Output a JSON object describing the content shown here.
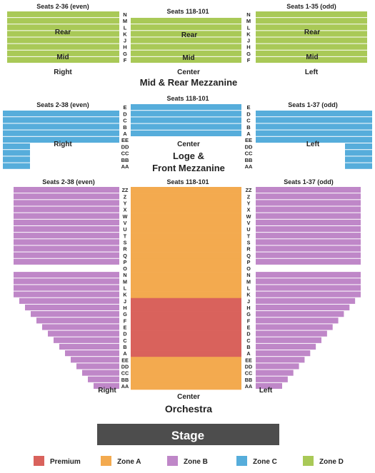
{
  "zones": {
    "premium": {
      "label": "Premium",
      "color": "#d9625c"
    },
    "zone_a": {
      "label": "Zone A",
      "color": "#f3aa4f"
    },
    "zone_b": {
      "label": "Zone B",
      "color": "#bf87c8"
    },
    "zone_c": {
      "label": "Zone C",
      "color": "#56addb"
    },
    "zone_d": {
      "label": "Zone D",
      "color": "#a9c957"
    }
  },
  "mezz": {
    "title": "Mid & Rear Mezzanine",
    "seats_left": "Seats 2-36 (even)",
    "seats_center": "Seats 118-101",
    "seats_right": "Seats 1-35 (odd)",
    "rear_label": "Rear",
    "mid_label": "Mid",
    "side_left": "Right",
    "side_center": "Center",
    "side_right": "Left",
    "rows": [
      "N",
      "M",
      "L",
      "K",
      "J",
      "H",
      "G",
      "F"
    ]
  },
  "loge": {
    "title_line1": "Loge &",
    "title_line2": "Front Mezzanine",
    "seats_left": "Seats 2-38 (even)",
    "seats_center": "Seats 118-101",
    "seats_right": "Seats 1-37 (odd)",
    "side_left": "Right",
    "side_center": "Center",
    "side_right": "Left",
    "rows": [
      "E",
      "D",
      "C",
      "B",
      "A",
      "EE",
      "DD",
      "CC",
      "BB",
      "AA"
    ]
  },
  "orch": {
    "title": "Orchestra",
    "seats_left": "Seats 2-38 (even)",
    "seats_center": "Seats 118-101",
    "seats_right": "Seats 1-37 (odd)",
    "side_left": "Right",
    "side_center": "Center",
    "side_right": "Left",
    "rows": [
      "ZZ",
      "Z",
      "Y",
      "X",
      "W",
      "V",
      "U",
      "T",
      "S",
      "R",
      "Q",
      "P",
      "O",
      "N",
      "M",
      "L",
      "K",
      "J",
      "H",
      "G",
      "F",
      "E",
      "D",
      "C",
      "B",
      "A",
      "EE",
      "DD",
      "CC",
      "BB",
      "AA"
    ]
  },
  "stage": {
    "label": "Stage"
  }
}
